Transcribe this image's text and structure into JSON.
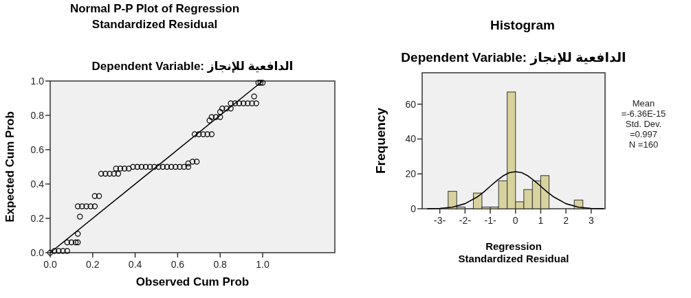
{
  "chart_data": [
    {
      "type": "scatter",
      "title": "Normal P-P Plot of Regression Standardized Residual",
      "subtitle": "Dependent Variable: الدافعية للإنجاز",
      "xlabel": "Observed Cum Prob",
      "ylabel": "Expected Cum Prob",
      "xlim": [
        0,
        1.34
      ],
      "ylim": [
        0,
        1
      ],
      "xticks": [
        {
          "value": 0,
          "label": "0.0"
        },
        {
          "value": 0.2,
          "label": "0.2"
        },
        {
          "value": 0.4,
          "label": "0.4"
        },
        {
          "value": 0.6,
          "label": "0.6"
        },
        {
          "value": 0.8,
          "label": "0.8"
        },
        {
          "value": 1,
          "label": "1.0"
        }
      ],
      "yticks": [
        {
          "value": 0,
          "label": "0.0"
        },
        {
          "value": 0.2,
          "label": "0.2"
        },
        {
          "value": 0.4,
          "label": "0.4"
        },
        {
          "value": 0.6,
          "label": "0.6"
        },
        {
          "value": 0.8,
          "label": "0.8"
        },
        {
          "value": 1,
          "label": "1.0"
        }
      ],
      "grid": false,
      "series": [
        {
          "type": "scatter",
          "marker": "circle",
          "color": "#000000",
          "x": [
            0,
            0.02,
            0.04,
            0.06,
            0.08,
            0.08,
            0.1,
            0.12,
            0.13,
            0.13,
            0.14,
            0.13,
            0.15,
            0.17,
            0.19,
            0.21,
            0.21,
            0.23,
            0.24,
            0.26,
            0.28,
            0.3,
            0.32,
            0.31,
            0.33,
            0.35,
            0.37,
            0.39,
            0.41,
            0.43,
            0.45,
            0.47,
            0.49,
            0.51,
            0.53,
            0.55,
            0.57,
            0.59,
            0.61,
            0.63,
            0.65,
            0.65,
            0.67,
            0.69,
            0.68,
            0.7,
            0.72,
            0.74,
            0.76,
            0.75,
            0.76,
            0.78,
            0.8,
            0.8,
            0.81,
            0.83,
            0.85,
            0.85,
            0.87,
            0.89,
            0.91,
            0.93,
            0.95,
            0.97,
            0.96,
            0.98,
            0.99,
            1
          ],
          "values": [
            0,
            0.01,
            0.01,
            0.01,
            0.01,
            0.06,
            0.06,
            0.06,
            0.06,
            0.11,
            0.21,
            0.27,
            0.27,
            0.27,
            0.27,
            0.27,
            0.33,
            0.33,
            0.46,
            0.46,
            0.46,
            0.46,
            0.46,
            0.49,
            0.49,
            0.49,
            0.49,
            0.5,
            0.5,
            0.5,
            0.5,
            0.5,
            0.5,
            0.5,
            0.5,
            0.5,
            0.5,
            0.5,
            0.5,
            0.5,
            0.5,
            0.52,
            0.53,
            0.53,
            0.69,
            0.69,
            0.69,
            0.69,
            0.69,
            0.77,
            0.79,
            0.79,
            0.79,
            0.82,
            0.84,
            0.84,
            0.84,
            0.87,
            0.87,
            0.87,
            0.87,
            0.87,
            0.87,
            0.87,
            0.91,
            0.99,
            0.99,
            0.99
          ]
        },
        {
          "type": "line",
          "marker": "none",
          "color": "#000000",
          "x": [
            0,
            1
          ],
          "values": [
            0,
            1
          ]
        }
      ]
    },
    {
      "type": "histogram",
      "title": "Histogram",
      "subtitle": "Dependent Variable: الدافعية للإنجاز",
      "xlabel": "Regression Standardized Residual",
      "ylabel": "Frequency",
      "xlim": [
        -3.7,
        3.55
      ],
      "ylim": [
        0,
        78
      ],
      "xticks": [
        {
          "value": -3,
          "label": "-3-"
        },
        {
          "value": -2,
          "label": "-2-"
        },
        {
          "value": -1,
          "label": "-1-"
        },
        0,
        1,
        2,
        3
      ],
      "yticks": [
        0,
        20,
        40,
        60
      ],
      "grid": false,
      "color": "#d8d39e",
      "bins": [
        -2.67,
        -2.33,
        -2,
        -1.67,
        -1.33,
        -1,
        -0.67,
        -0.33,
        0,
        0.33,
        0.67,
        1,
        1.33,
        1.67,
        2,
        2.33,
        2.67
      ],
      "values": [
        10,
        1,
        0,
        9,
        1,
        1,
        16,
        67,
        4,
        11,
        16,
        19,
        0,
        0,
        0,
        5
      ],
      "series": [
        {
          "type": "line",
          "marker": "none",
          "color": "#000000",
          "x": [
            -3.5,
            -3,
            -2.5,
            -2,
            -1.5,
            -1.25,
            -1,
            -0.75,
            -0.5,
            -0.25,
            0,
            0.25,
            0.5,
            0.75,
            1,
            1.25,
            1.5,
            2,
            2.5,
            3,
            3.5
          ],
          "values": [
            0,
            0.2,
            0.9,
            2.9,
            6.9,
            9.7,
            12.9,
            16,
            18.8,
            20.7,
            21.3,
            20.7,
            18.8,
            16,
            12.9,
            9.7,
            6.9,
            2.9,
            0.9,
            0.2,
            0
          ]
        }
      ],
      "annotations": [
        "Mean =-6.36E-15",
        "Std. Dev. =0.997",
        "N =160"
      ]
    }
  ]
}
